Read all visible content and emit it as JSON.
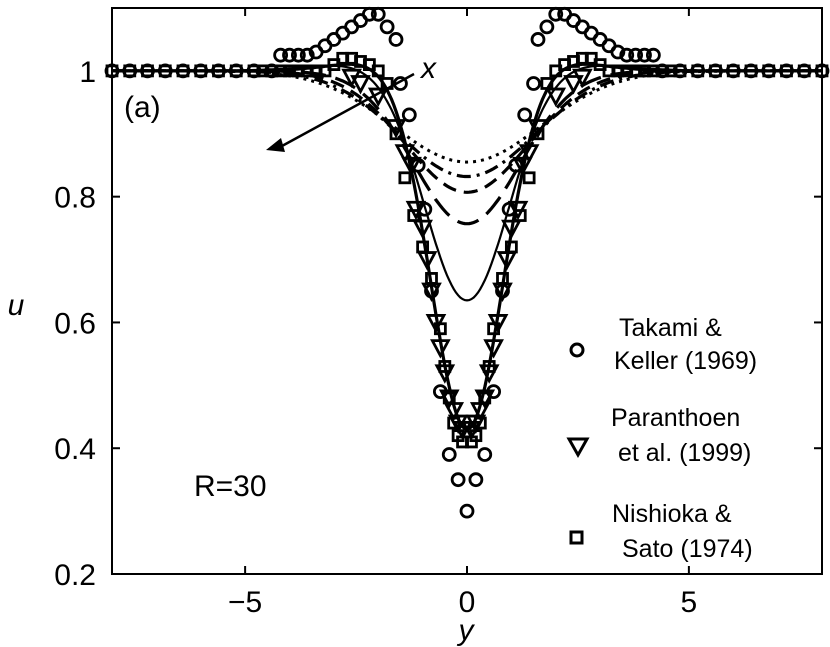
{
  "chart_data": {
    "type": "line",
    "title": "",
    "panel_label": "(a)",
    "annotation": "R=30",
    "arrow_label": "x",
    "xlabel": "y",
    "ylabel": "u",
    "xlim": [
      -8,
      8
    ],
    "ylim": [
      0.2,
      1.1
    ],
    "xticks": [
      -5,
      0,
      5
    ],
    "xtick_labels": [
      "−5",
      "0",
      "5"
    ],
    "yticks": [
      0.2,
      0.4,
      0.6,
      0.8,
      1.0
    ],
    "ytick_labels": [
      "0.2",
      "0.4",
      "0.6",
      "0.8",
      "1"
    ],
    "grid": false,
    "legend_position": "bottom-right",
    "model_curves": [
      {
        "name": "solid-thick",
        "style": "solid",
        "stroke": 3.2,
        "center": 0.43,
        "width": 1.15,
        "overshoot": 0.02
      },
      {
        "name": "solid-thin",
        "style": "solid",
        "stroke": 2.2,
        "center": 0.635,
        "width": 1.35,
        "overshoot": 0.015
      },
      {
        "name": "long-dash",
        "style": "dash",
        "stroke": 3.2,
        "center": 0.757,
        "width": 1.7,
        "overshoot": 0.0
      },
      {
        "name": "dash",
        "style": "dash2",
        "stroke": 3.2,
        "center": 0.807,
        "width": 1.95,
        "overshoot": 0.0
      },
      {
        "name": "dash-dot",
        "style": "dashdot",
        "stroke": 3.2,
        "center": 0.832,
        "width": 2.15,
        "overshoot": 0.0
      },
      {
        "name": "dotted",
        "style": "dot",
        "stroke": 3.0,
        "center": 0.855,
        "width": 2.35,
        "overshoot": 0.0
      }
    ],
    "series": [
      {
        "name": "Takami & Keller (1969)",
        "legend": [
          "Takami &",
          "Keller (1969)"
        ],
        "marker": "circle",
        "points": [
          [
            -8,
            1
          ],
          [
            -7.6,
            1
          ],
          [
            -7.2,
            1
          ],
          [
            -6.8,
            1
          ],
          [
            -6.4,
            1
          ],
          [
            -6.0,
            1
          ],
          [
            -5.6,
            1
          ],
          [
            -5.2,
            1
          ],
          [
            -4.8,
            1
          ],
          [
            -4.4,
            1
          ],
          [
            -4.2,
            1.025
          ],
          [
            -4.0,
            1.025
          ],
          [
            -3.8,
            1.025
          ],
          [
            -3.6,
            1.025
          ],
          [
            -3.4,
            1.03
          ],
          [
            -3.2,
            1.04
          ],
          [
            -3.0,
            1.05
          ],
          [
            -2.8,
            1.06
          ],
          [
            -2.6,
            1.07
          ],
          [
            -2.4,
            1.08
          ],
          [
            -2.2,
            1.09
          ],
          [
            -2.0,
            1.09
          ],
          [
            -1.8,
            1.07
          ],
          [
            -1.6,
            1.05
          ],
          [
            -1.5,
            0.98
          ],
          [
            -1.3,
            0.93
          ],
          [
            -1.1,
            0.85
          ],
          [
            -0.95,
            0.78
          ],
          [
            -0.8,
            0.65
          ],
          [
            -0.6,
            0.49
          ],
          [
            -0.4,
            0.39
          ],
          [
            -0.2,
            0.35
          ],
          [
            0,
            0.3
          ],
          [
            0.2,
            0.35
          ],
          [
            0.4,
            0.39
          ],
          [
            0.6,
            0.49
          ],
          [
            0.8,
            0.65
          ],
          [
            0.95,
            0.78
          ],
          [
            1.1,
            0.85
          ],
          [
            1.3,
            0.93
          ],
          [
            1.5,
            0.98
          ],
          [
            1.6,
            1.05
          ],
          [
            1.8,
            1.07
          ],
          [
            2.0,
            1.09
          ],
          [
            2.2,
            1.09
          ],
          [
            2.4,
            1.08
          ],
          [
            2.6,
            1.07
          ],
          [
            2.8,
            1.06
          ],
          [
            3.0,
            1.05
          ],
          [
            3.2,
            1.04
          ],
          [
            3.4,
            1.03
          ],
          [
            3.6,
            1.025
          ],
          [
            3.8,
            1.025
          ],
          [
            4.0,
            1.025
          ],
          [
            4.2,
            1.025
          ],
          [
            4.4,
            1
          ],
          [
            4.8,
            1
          ],
          [
            5.2,
            1
          ],
          [
            5.6,
            1
          ],
          [
            6.0,
            1
          ],
          [
            6.4,
            1
          ],
          [
            6.8,
            1
          ],
          [
            7.2,
            1
          ],
          [
            7.6,
            1
          ],
          [
            8,
            1
          ]
        ]
      },
      {
        "name": "Paranthoen et al. (1999)",
        "legend": [
          "Paranthoen",
          " et al. (1999)"
        ],
        "marker": "triangle-down",
        "points": [
          [
            -2.6,
            0.99
          ],
          [
            -2.4,
            0.98
          ],
          [
            -2.0,
            0.96
          ],
          [
            -1.6,
            0.91
          ],
          [
            -1.4,
            0.87
          ],
          [
            -1.25,
            0.85
          ],
          [
            -1.15,
            0.78
          ],
          [
            -1.0,
            0.75
          ],
          [
            -0.9,
            0.7
          ],
          [
            -0.8,
            0.65
          ],
          [
            -0.7,
            0.6
          ],
          [
            -0.6,
            0.56
          ],
          [
            -0.5,
            0.52
          ],
          [
            -0.4,
            0.48
          ],
          [
            -0.3,
            0.46
          ],
          [
            -0.2,
            0.44
          ],
          [
            -0.1,
            0.43
          ],
          [
            0.1,
            0.43
          ],
          [
            0.2,
            0.44
          ],
          [
            0.3,
            0.46
          ],
          [
            0.4,
            0.48
          ],
          [
            0.5,
            0.52
          ],
          [
            0.6,
            0.56
          ],
          [
            0.7,
            0.6
          ],
          [
            0.8,
            0.65
          ],
          [
            0.9,
            0.7
          ],
          [
            1.0,
            0.75
          ],
          [
            1.15,
            0.78
          ],
          [
            1.25,
            0.85
          ],
          [
            1.4,
            0.87
          ],
          [
            1.6,
            0.91
          ],
          [
            2.0,
            0.96
          ],
          [
            2.4,
            0.98
          ],
          [
            2.6,
            0.99
          ]
        ]
      },
      {
        "name": "Nishioka & Sato (1974)",
        "legend": [
          "Nishioka &",
          "Sato (1974)"
        ],
        "marker": "square",
        "points": [
          [
            -8,
            1
          ],
          [
            -7.6,
            1
          ],
          [
            -7.2,
            1
          ],
          [
            -6.8,
            1
          ],
          [
            -6.4,
            1
          ],
          [
            -6.0,
            1
          ],
          [
            -5.6,
            1
          ],
          [
            -5.2,
            1
          ],
          [
            -4.8,
            1
          ],
          [
            -4.6,
            1
          ],
          [
            -4.4,
            1
          ],
          [
            -4.2,
            1
          ],
          [
            -4.0,
            1
          ],
          [
            -3.8,
            1
          ],
          [
            -3.6,
            1
          ],
          [
            -3.4,
            1
          ],
          [
            -3.2,
            1.0
          ],
          [
            -3.0,
            1.01
          ],
          [
            -2.8,
            1.02
          ],
          [
            -2.6,
            1.02
          ],
          [
            -2.4,
            1.015
          ],
          [
            -2.2,
            1.01
          ],
          [
            -2.0,
            1.0
          ],
          [
            -1.8,
            0.98
          ],
          [
            -1.6,
            0.9
          ],
          [
            -1.4,
            0.83
          ],
          [
            -1.2,
            0.77
          ],
          [
            -1.0,
            0.72
          ],
          [
            -0.8,
            0.67
          ],
          [
            -0.6,
            0.59
          ],
          [
            -0.5,
            0.53
          ],
          [
            -0.4,
            0.48
          ],
          [
            -0.3,
            0.44
          ],
          [
            -0.2,
            0.42
          ],
          [
            -0.1,
            0.41
          ],
          [
            0.1,
            0.41
          ],
          [
            0.2,
            0.42
          ],
          [
            0.3,
            0.44
          ],
          [
            0.4,
            0.48
          ],
          [
            0.5,
            0.53
          ],
          [
            0.6,
            0.59
          ],
          [
            0.8,
            0.67
          ],
          [
            1.0,
            0.72
          ],
          [
            1.2,
            0.77
          ],
          [
            1.4,
            0.83
          ],
          [
            1.6,
            0.9
          ],
          [
            1.8,
            0.98
          ],
          [
            2.0,
            1.0
          ],
          [
            2.2,
            1.01
          ],
          [
            2.4,
            1.015
          ],
          [
            2.6,
            1.02
          ],
          [
            2.8,
            1.02
          ],
          [
            3.0,
            1.01
          ],
          [
            3.2,
            1.0
          ],
          [
            3.4,
            1
          ],
          [
            3.6,
            1
          ],
          [
            3.8,
            1
          ],
          [
            4.0,
            1
          ],
          [
            4.2,
            1
          ],
          [
            4.4,
            1
          ],
          [
            4.6,
            1
          ],
          [
            4.8,
            1
          ],
          [
            5.2,
            1
          ],
          [
            5.6,
            1
          ],
          [
            6.0,
            1
          ],
          [
            6.4,
            1
          ],
          [
            6.8,
            1
          ],
          [
            7.2,
            1
          ],
          [
            7.6,
            1
          ],
          [
            8,
            1
          ]
        ]
      }
    ]
  }
}
